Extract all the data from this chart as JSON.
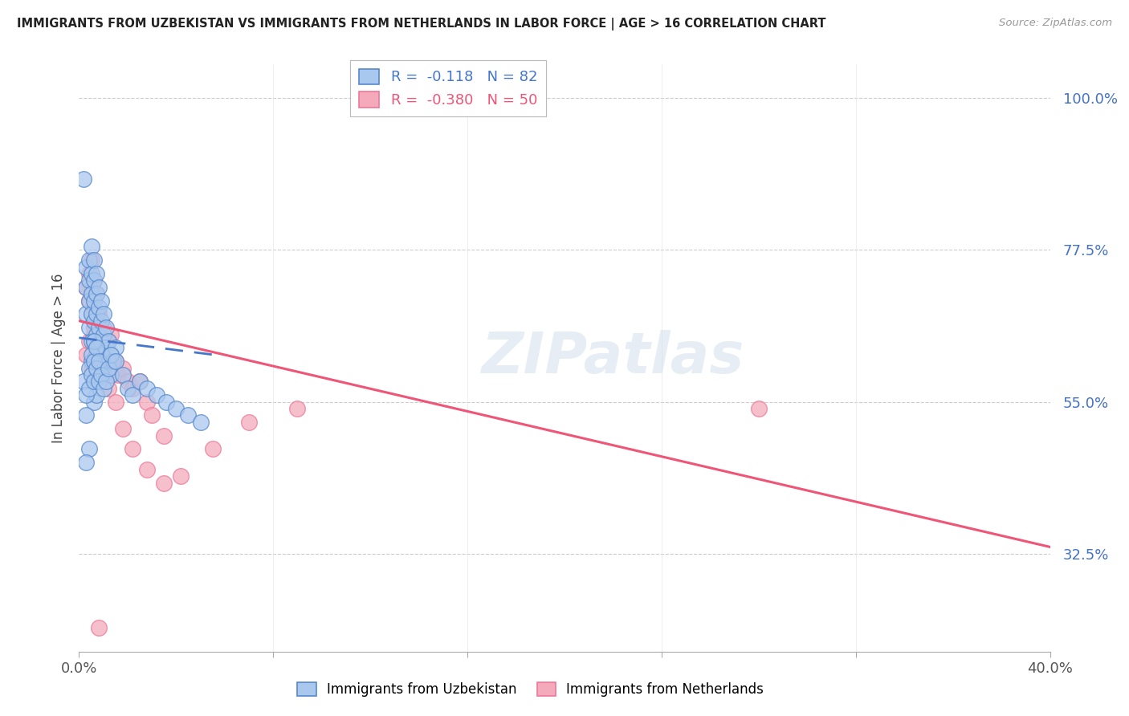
{
  "title": "IMMIGRANTS FROM UZBEKISTAN VS IMMIGRANTS FROM NETHERLANDS IN LABOR FORCE | AGE > 16 CORRELATION CHART",
  "source": "Source: ZipAtlas.com",
  "ylabel": "In Labor Force | Age > 16",
  "ytick_values": [
    1.0,
    0.775,
    0.55,
    0.325
  ],
  "ytick_labels": [
    "100.0%",
    "77.5%",
    "55.0%",
    "32.5%"
  ],
  "xlim": [
    0.0,
    0.4
  ],
  "ylim": [
    0.18,
    1.05
  ],
  "R_uzb": -0.118,
  "N_uzb": 82,
  "R_neth": -0.38,
  "N_neth": 50,
  "color_uzb_face": "#aac8ee",
  "color_uzb_edge": "#5588cc",
  "color_neth_face": "#f4aabb",
  "color_neth_edge": "#ee7799",
  "line_color_uzb": "#4477cc",
  "line_color_neth": "#ee5577",
  "watermark": "ZIPatlas",
  "uzb_x": [
    0.002,
    0.003,
    0.003,
    0.003,
    0.004,
    0.004,
    0.004,
    0.004,
    0.005,
    0.005,
    0.005,
    0.005,
    0.005,
    0.005,
    0.006,
    0.006,
    0.006,
    0.006,
    0.006,
    0.006,
    0.006,
    0.006,
    0.007,
    0.007,
    0.007,
    0.007,
    0.007,
    0.007,
    0.007,
    0.008,
    0.008,
    0.008,
    0.008,
    0.008,
    0.009,
    0.009,
    0.009,
    0.009,
    0.01,
    0.01,
    0.01,
    0.01,
    0.011,
    0.011,
    0.012,
    0.012,
    0.013,
    0.013,
    0.014,
    0.015,
    0.002,
    0.003,
    0.003,
    0.004,
    0.004,
    0.005,
    0.005,
    0.006,
    0.006,
    0.006,
    0.007,
    0.007,
    0.008,
    0.008,
    0.009,
    0.01,
    0.011,
    0.012,
    0.013,
    0.015,
    0.018,
    0.02,
    0.022,
    0.025,
    0.028,
    0.032,
    0.036,
    0.04,
    0.045,
    0.05,
    0.004,
    0.003
  ],
  "uzb_y": [
    0.88,
    0.75,
    0.72,
    0.68,
    0.76,
    0.73,
    0.7,
    0.66,
    0.78,
    0.74,
    0.71,
    0.68,
    0.64,
    0.61,
    0.76,
    0.73,
    0.7,
    0.67,
    0.64,
    0.61,
    0.58,
    0.55,
    0.74,
    0.71,
    0.68,
    0.65,
    0.62,
    0.59,
    0.56,
    0.72,
    0.69,
    0.66,
    0.63,
    0.6,
    0.7,
    0.67,
    0.64,
    0.61,
    0.68,
    0.65,
    0.62,
    0.59,
    0.66,
    0.63,
    0.64,
    0.61,
    0.62,
    0.59,
    0.61,
    0.63,
    0.58,
    0.56,
    0.53,
    0.6,
    0.57,
    0.62,
    0.59,
    0.64,
    0.61,
    0.58,
    0.63,
    0.6,
    0.61,
    0.58,
    0.59,
    0.57,
    0.58,
    0.6,
    0.62,
    0.61,
    0.59,
    0.57,
    0.56,
    0.58,
    0.57,
    0.56,
    0.55,
    0.54,
    0.53,
    0.52,
    0.48,
    0.46
  ],
  "neth_x": [
    0.003,
    0.004,
    0.004,
    0.005,
    0.005,
    0.005,
    0.006,
    0.006,
    0.006,
    0.007,
    0.007,
    0.008,
    0.008,
    0.009,
    0.009,
    0.01,
    0.01,
    0.011,
    0.012,
    0.013,
    0.014,
    0.015,
    0.016,
    0.018,
    0.02,
    0.022,
    0.025,
    0.028,
    0.03,
    0.035,
    0.003,
    0.004,
    0.005,
    0.006,
    0.007,
    0.008,
    0.009,
    0.01,
    0.012,
    0.015,
    0.018,
    0.022,
    0.028,
    0.035,
    0.042,
    0.055,
    0.07,
    0.09,
    0.28,
    0.008
  ],
  "neth_y": [
    0.72,
    0.74,
    0.7,
    0.76,
    0.72,
    0.68,
    0.73,
    0.69,
    0.65,
    0.71,
    0.67,
    0.68,
    0.64,
    0.65,
    0.61,
    0.66,
    0.62,
    0.63,
    0.64,
    0.65,
    0.6,
    0.61,
    0.59,
    0.6,
    0.58,
    0.57,
    0.58,
    0.55,
    0.53,
    0.5,
    0.62,
    0.64,
    0.6,
    0.66,
    0.62,
    0.58,
    0.63,
    0.59,
    0.57,
    0.55,
    0.51,
    0.48,
    0.45,
    0.43,
    0.44,
    0.48,
    0.52,
    0.54,
    0.54,
    0.215
  ]
}
